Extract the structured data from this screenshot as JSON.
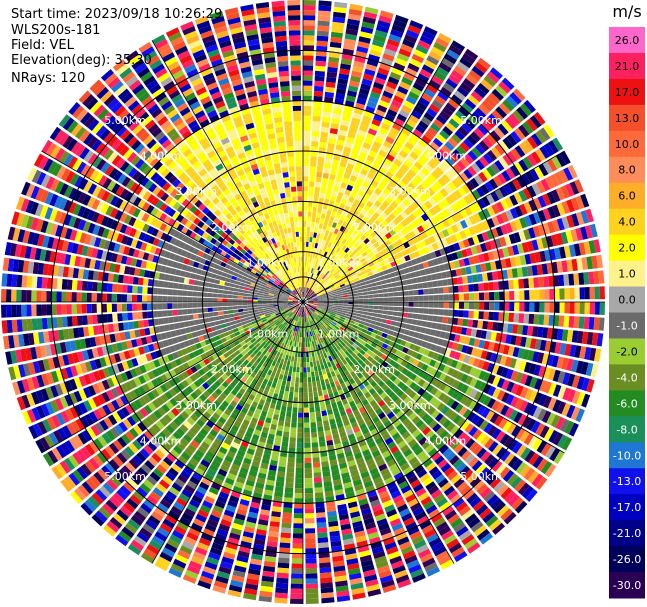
{
  "header": {
    "start_time": "Start time: 2023/09/18 10:26:29",
    "site": "WLS200s-181",
    "field": "Field: VEL",
    "elevation": "Elevation(deg): 35.30",
    "nrays": "NRays: 120"
  },
  "colorbar": {
    "unit": "m/s",
    "levels": [
      {
        "label": "26.0",
        "color": "#ff66cc"
      },
      {
        "label": "21.0",
        "color": "#ff2060"
      },
      {
        "label": "17.0",
        "color": "#ee1111"
      },
      {
        "label": "13.0",
        "color": "#f5502a"
      },
      {
        "label": "10.0",
        "color": "#ff6a3a"
      },
      {
        "label": "8.0",
        "color": "#ff8d5a"
      },
      {
        "label": "6.0",
        "color": "#ffae2a"
      },
      {
        "label": "4.0",
        "color": "#ffd21e"
      },
      {
        "label": "2.0",
        "color": "#ffff00"
      },
      {
        "label": "1.0",
        "color": "#fff28a"
      },
      {
        "label": "0.0",
        "color": "#a8a8a8"
      },
      {
        "label": "-1.0",
        "color": "#6b6b6b"
      },
      {
        "label": "-2.0",
        "color": "#9acd32"
      },
      {
        "label": "-4.0",
        "color": "#6b8e23"
      },
      {
        "label": "-6.0",
        "color": "#228b22"
      },
      {
        "label": "-8.0",
        "color": "#1a8f5a"
      },
      {
        "label": "-10.0",
        "color": "#1f77d4"
      },
      {
        "label": "-13.0",
        "color": "#1010ee"
      },
      {
        "label": "-17.0",
        "color": "#0000c0"
      },
      {
        "label": "-21.0",
        "color": "#000088"
      },
      {
        "label": "-26.0",
        "color": "#00005a"
      },
      {
        "label": "-30.0",
        "color": "#2a0055"
      }
    ]
  },
  "chart_data": {
    "type": "heatmap",
    "projection": "polar PPI",
    "field": "VEL",
    "unit": "m/s",
    "nrays": 120,
    "azimuth_deg": [
      0,
      360
    ],
    "range_km": [
      0,
      6
    ],
    "range_rings_km": [
      0.5,
      1.0,
      2.0,
      3.0,
      4.0,
      5.0
    ],
    "ring_labels": [
      "1.00km",
      "2.00km",
      "3.00km",
      "4.00km",
      "5.00km"
    ],
    "spokes_every_deg": 30,
    "velocity_regions": [
      {
        "description": "positive",
        "azimuth_from_deg": 315,
        "azimuth_to_deg": 70,
        "range_km": [
          0.3,
          4.0
        ],
        "value_mps": [
          1,
          6
        ]
      },
      {
        "description": "near zero",
        "azimuth_from_deg": 70,
        "azimuth_to_deg": 110,
        "range_km": [
          0.3,
          3.0
        ],
        "value_mps": [
          -1,
          0
        ]
      },
      {
        "description": "near zero",
        "azimuth_from_deg": 250,
        "azimuth_to_deg": 300,
        "range_km": [
          0.3,
          3.0
        ],
        "value_mps": [
          -1,
          0
        ]
      },
      {
        "description": "negative",
        "azimuth_from_deg": 110,
        "azimuth_to_deg": 250,
        "range_km": [
          0.3,
          4.0
        ],
        "value_mps": [
          -6,
          -1
        ]
      },
      {
        "description": "noise",
        "range_km": [
          4.0,
          6.0
        ],
        "value_mps": [
          -30,
          26
        ]
      }
    ]
  }
}
